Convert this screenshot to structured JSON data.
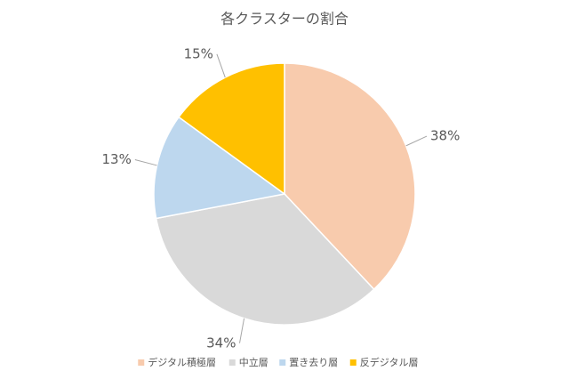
{
  "chart_data": {
    "type": "pie",
    "title": "各クラスターの割合",
    "categories": [
      "デジタル積極層",
      "中立層",
      "置き去り層",
      "反デジタル層"
    ],
    "values": [
      38,
      34,
      13,
      15
    ],
    "value_labels": [
      "38%",
      "34%",
      "13%",
      "15%"
    ],
    "colors": [
      "#F8CBAD",
      "#D9D9D9",
      "#BDD7EE",
      "#FFC000"
    ],
    "legend": "bottom"
  }
}
